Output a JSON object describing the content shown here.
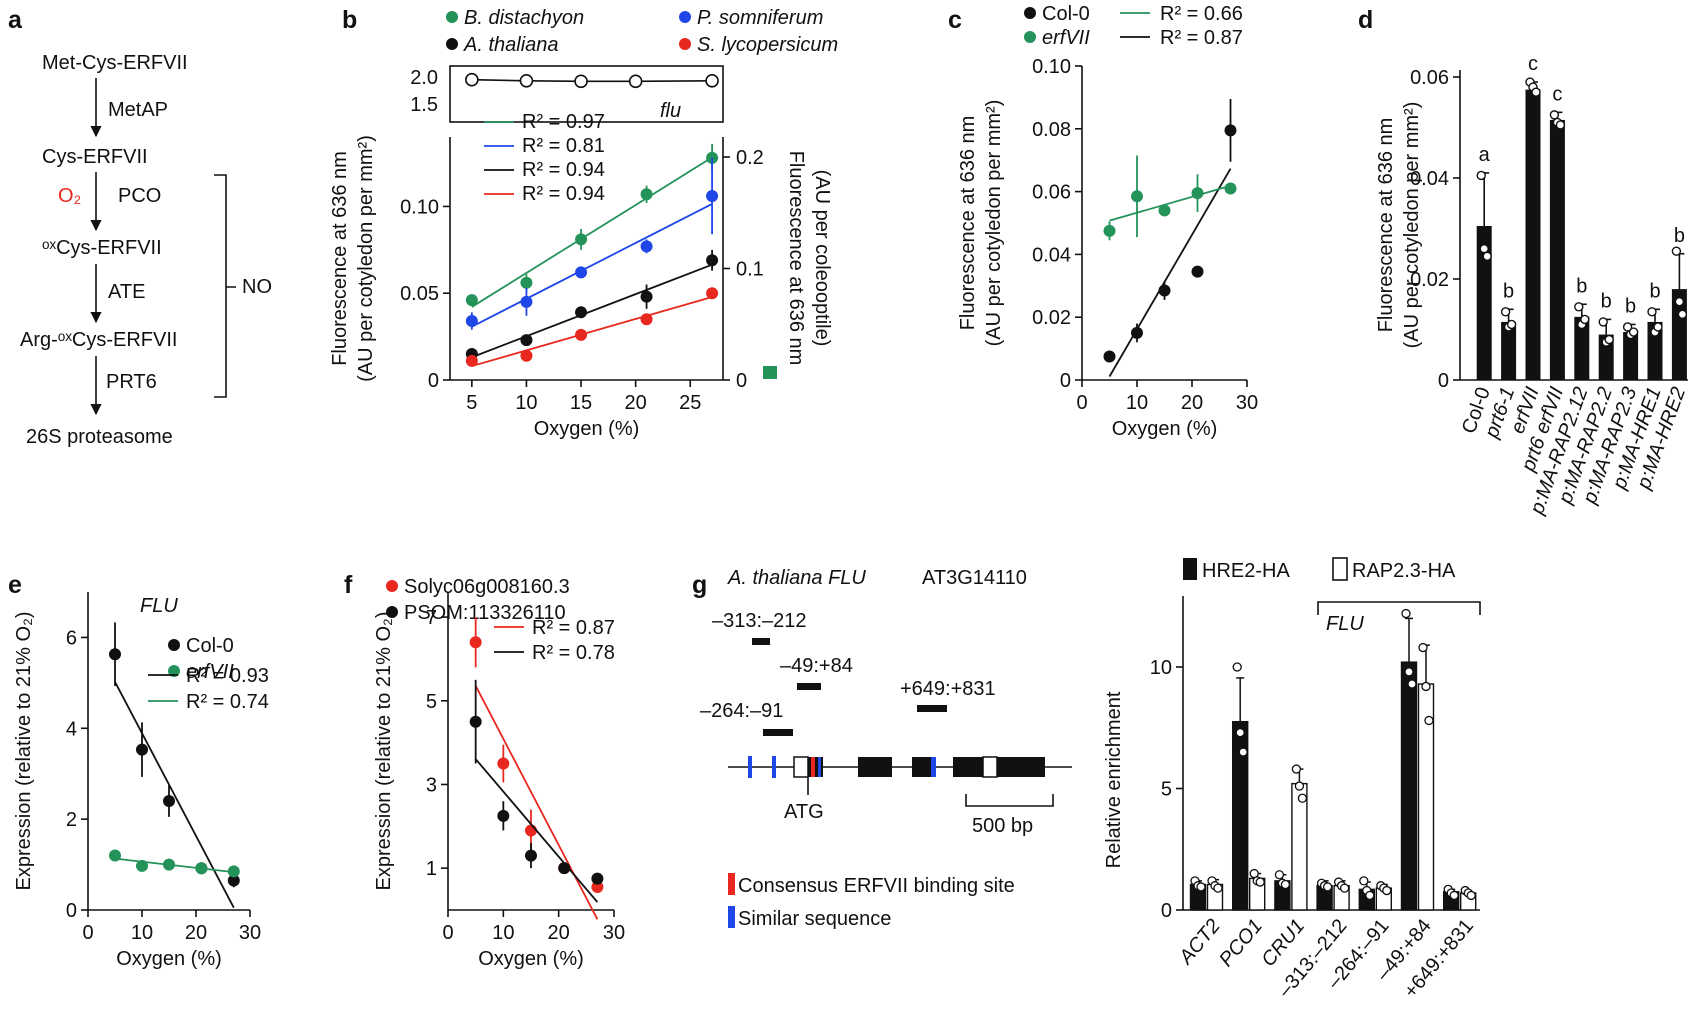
{
  "colors": {
    "green": "#23935a",
    "blue": "#1f47e8",
    "black": "#111111",
    "red": "#e8281e"
  },
  "panel_a": {
    "letter": "a",
    "steps": [
      "Met-Cys-ERFVII",
      "Cys-ERFVII",
      "ᵒˣCys-ERFVII",
      "Arg-ᵒˣCys-ERFVII",
      "26S proteasome"
    ],
    "enzymes": [
      "MetAP",
      "PCO",
      "ATE",
      "PRT6"
    ],
    "o2": "O₂",
    "no": "NO"
  },
  "panel_letters": {
    "b": "b",
    "c": "c",
    "d": "d",
    "e": "e",
    "f": "f",
    "g": "g"
  },
  "chart_data": [
    {
      "id": "b",
      "type": "scatter",
      "xlabel": "Oxygen (%)",
      "ylabel_lines": [
        "Fluorescence at 636 nm",
        "(AU per cotyledon per mm²)"
      ],
      "ylabel2_lines": [
        "Fluorescence at 636 nm",
        "(AU per coleooptile)"
      ],
      "xlim": [
        3,
        28
      ],
      "xticks": [
        "5",
        "10",
        "15",
        "20",
        "25"
      ],
      "ylim": [
        0,
        0.14
      ],
      "yticks": [
        "0",
        "0.05",
        "0.10"
      ],
      "y2ticks": [
        "0",
        "0.1",
        "0.2"
      ],
      "inset": {
        "label": "flu",
        "yticks": [
          "1.5",
          "2.0"
        ],
        "x": [
          5,
          10,
          15,
          20,
          27
        ],
        "y": [
          1.95,
          1.93,
          1.92,
          1.92,
          1.93
        ]
      },
      "legend": [
        "B. distachyon",
        "P. somniferum",
        "A. thaliana",
        "S. lycopersicum"
      ],
      "r2": [
        "R² = 0.97",
        "R² = 0.81",
        "R² = 0.94",
        "R² = 0.94"
      ],
      "series": [
        {
          "name": "B. distachyon",
          "color": "green",
          "x": [
            5,
            10,
            15,
            21,
            27
          ],
          "y": [
            0.046,
            0.056,
            0.081,
            0.107,
            0.128
          ],
          "err": [
            0,
            0.005,
            0.006,
            0.005,
            0.008
          ]
        },
        {
          "name": "P. somniferum",
          "color": "blue",
          "x": [
            5,
            10,
            15,
            21,
            27
          ],
          "y": [
            0.034,
            0.045,
            0.062,
            0.077,
            0.106
          ],
          "err": [
            0.005,
            0.008,
            0.003,
            0.004,
            0.022
          ]
        },
        {
          "name": "A. thaliana",
          "color": "black",
          "x": [
            5,
            10,
            15,
            21,
            27
          ],
          "y": [
            0.015,
            0.023,
            0.039,
            0.048,
            0.069
          ],
          "err": [
            0,
            0,
            0,
            0.007,
            0.006
          ]
        },
        {
          "name": "S. lycopersicum",
          "color": "red",
          "x": [
            5,
            10,
            15,
            21,
            27
          ],
          "y": [
            0.011,
            0.014,
            0.026,
            0.035,
            0.05
          ],
          "err": [
            0,
            0,
            0,
            0,
            0
          ]
        }
      ]
    },
    {
      "id": "c",
      "type": "scatter",
      "xlabel": "Oxygen (%)",
      "ylabel_lines": [
        "Fluorescence at 636 nm",
        "(AU per cotyledon per mm²)"
      ],
      "xlim": [
        0,
        30
      ],
      "xticks": [
        "0",
        "10",
        "20",
        "30"
      ],
      "ylim": [
        0,
        0.1
      ],
      "yticks": [
        "0",
        "0.02",
        "0.04",
        "0.06",
        "0.08",
        "0.10"
      ],
      "legend": [
        "Col-0",
        "erfVII"
      ],
      "r2": [
        "R² = 0.66",
        "R² = 0.87"
      ],
      "series": [
        {
          "name": "Col-0",
          "color": "black",
          "x": [
            5,
            10,
            15,
            21,
            27
          ],
          "y": [
            0.0075,
            0.015,
            0.0285,
            0.0345,
            0.0795
          ],
          "err": [
            0,
            0.003,
            0.003,
            0,
            0.01
          ]
        },
        {
          "name": "erfVII",
          "color": "green",
          "x": [
            5,
            10,
            15,
            21,
            27
          ],
          "y": [
            0.0475,
            0.0585,
            0.054,
            0.0595,
            0.061
          ],
          "err": [
            0.003,
            0.013,
            0,
            0.006,
            0
          ]
        }
      ]
    },
    {
      "id": "d",
      "type": "bar",
      "ylabel_lines": [
        "Fluorescence at 636 nm",
        "(AU per cotyledon per mm²)"
      ],
      "ylim": [
        0,
        0.063
      ],
      "yticks": [
        "0",
        "0.02",
        "0.04",
        "0.06"
      ],
      "categories": [
        "Col-0",
        "prt6-1",
        "erfVII",
        "prt6 erfVII",
        "p:MA-RAP2.12",
        "p:MA-RAP2.2",
        "p:MA-RAP2.3",
        "p:MA-HRE1",
        "p:MA-HRE2"
      ],
      "values": [
        0.0305,
        0.0115,
        0.0575,
        0.0515,
        0.0125,
        0.009,
        0.0095,
        0.0115,
        0.018
      ],
      "err": [
        0.0105,
        0.0025,
        0.0015,
        0.0015,
        0.0025,
        0.003,
        0.0015,
        0.0025,
        0.007
      ],
      "letters": [
        "a",
        "b",
        "c",
        "c",
        "b",
        "b",
        "b",
        "b",
        "b"
      ],
      "points": [
        [
          0.0405,
          0.026,
          0.0245
        ],
        [
          0.0135,
          0.0105,
          0.011
        ],
        [
          0.059,
          0.058,
          0.057
        ],
        [
          0.0525,
          0.051,
          0.0505
        ],
        [
          0.0145,
          0.011,
          0.012
        ],
        [
          0.0115,
          0.0075,
          0.008
        ],
        [
          0.0105,
          0.009,
          0.0095
        ],
        [
          0.0135,
          0.0095,
          0.0105
        ],
        [
          0.0255,
          0.0155,
          0.013
        ]
      ]
    },
    {
      "id": "e",
      "type": "scatter",
      "title": "FLU",
      "xlabel": "Oxygen (%)",
      "ylabel_lines": [
        "Expression (relative to 21% O₂)"
      ],
      "xlim": [
        0,
        30
      ],
      "xticks": [
        "0",
        "10",
        "20",
        "30"
      ],
      "ylim": [
        0,
        7
      ],
      "yticks": [
        "0",
        "2",
        "4",
        "6"
      ],
      "legend": [
        "Col-0",
        "erfVII"
      ],
      "r2": [
        "R² = 0.93",
        "R² = 0.74"
      ],
      "series": [
        {
          "name": "Col-0",
          "color": "black",
          "x": [
            5,
            10,
            15,
            21,
            27
          ],
          "y": [
            5.63,
            3.53,
            2.4,
            0.92,
            0.65
          ],
          "err": [
            0.7,
            0.6,
            0.35,
            0,
            0.15
          ]
        },
        {
          "name": "erfVII",
          "color": "green",
          "x": [
            5,
            10,
            15,
            21,
            27
          ],
          "y": [
            1.2,
            0.97,
            1.0,
            0.92,
            0.85
          ],
          "err": [
            0.12,
            0.1,
            0.1,
            0,
            0.1
          ]
        }
      ]
    },
    {
      "id": "f",
      "type": "scatter",
      "xlabel": "Oxygen (%)",
      "ylabel_lines": [
        "Expression (relative to 21% O₂)"
      ],
      "xlim": [
        0,
        30
      ],
      "xticks": [
        "0",
        "10",
        "20",
        "30"
      ],
      "ylim": [
        0,
        7.6
      ],
      "yticks": [
        "1",
        "3",
        "5",
        "7"
      ],
      "legend": [
        "Solyc06g008160.3",
        "PSOM:113326110"
      ],
      "r2": [
        "R² = 0.87",
        "R² = 0.78"
      ],
      "series": [
        {
          "name": "Solyc06g008160.3",
          "color": "red",
          "x": [
            5,
            10,
            15,
            21,
            27
          ],
          "y": [
            6.4,
            3.5,
            1.9,
            1.0,
            0.55
          ],
          "err": [
            0.6,
            0.45,
            0.5,
            0,
            0
          ]
        },
        {
          "name": "PSOM:113326110",
          "color": "black",
          "x": [
            5,
            10,
            15,
            21,
            27
          ],
          "y": [
            4.5,
            2.25,
            1.3,
            1.0,
            0.75
          ],
          "err": [
            1.0,
            0.35,
            0.3,
            0,
            0
          ]
        }
      ]
    },
    {
      "id": "g",
      "type": "bar",
      "ylabel_lines": [
        "Relative enrichment"
      ],
      "ylim": [
        0,
        13
      ],
      "yticks": [
        "0",
        "5",
        "10"
      ],
      "legend": [
        "HRE2-HA",
        "RAP2.3-HA"
      ],
      "group_label": "FLU",
      "categories": [
        "ACT2",
        "PCO1",
        "CRU1",
        "–313:–212",
        "–264:–91",
        "–49:+84",
        "+649:+831"
      ],
      "series": [
        {
          "name": "HRE2-HA",
          "values": [
            1.05,
            7.75,
            1.2,
            1.0,
            0.85,
            10.2,
            0.75
          ],
          "err": [
            0.15,
            1.8,
            0.25,
            0.2,
            0.3,
            1.8,
            0.1
          ],
          "points": [
            [
              1.2,
              1.0,
              0.95
            ],
            [
              10.0,
              7.3,
              6.5
            ],
            [
              1.45,
              1.1,
              1.05
            ],
            [
              1.1,
              1.0,
              0.95
            ],
            [
              1.2,
              0.8,
              0.6
            ],
            [
              12.2,
              9.8,
              9.3
            ],
            [
              0.85,
              0.7,
              0.6
            ]
          ]
        },
        {
          "name": "RAP2.3-HA",
          "values": [
            1.05,
            1.3,
            5.2,
            1.0,
            0.9,
            9.3,
            0.7
          ],
          "err": [
            0.2,
            0.2,
            0.6,
            0.2,
            0.15,
            1.6,
            0.1
          ],
          "points": [
            [
              1.2,
              1.0,
              0.9
            ],
            [
              1.5,
              1.2,
              1.15
            ],
            [
              5.8,
              5.1,
              4.6
            ],
            [
              1.15,
              1.0,
              0.9
            ],
            [
              1.0,
              0.9,
              0.8
            ],
            [
              10.8,
              9.2,
              7.8
            ],
            [
              0.8,
              0.7,
              0.6
            ]
          ]
        }
      ]
    }
  ],
  "panel_g_gene": {
    "title": "A. thaliana FLU",
    "locus": "AT3G14110",
    "fragments": [
      "–313:–212",
      "–49:+84",
      "–264:–91",
      "+649:+831"
    ],
    "atg": "ATG",
    "scale": "500 bp",
    "legend": [
      "Consensus ERFVII binding site",
      "Similar sequence"
    ]
  }
}
